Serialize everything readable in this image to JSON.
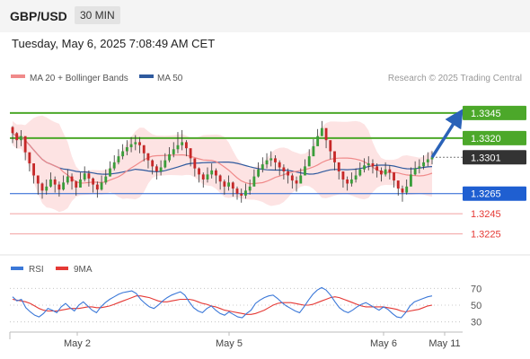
{
  "header": {
    "symbol": "GBP/USD",
    "interval": "30 MIN",
    "timestamp": "Tuesday, May 6, 2025 7:08:49 AM CET"
  },
  "legend": {
    "ma20_label": "MA 20 + Bollinger Bands",
    "ma50_label": "MA 50",
    "ma20_color": "#f08a8a",
    "ma50_color": "#2f5a9e"
  },
  "watermark": "Research © 2025 Trading Central",
  "chart_data": {
    "type": "candlestick",
    "price_panel": {
      "ylim": [
        1.3206,
        1.3368
      ],
      "levels": [
        {
          "label": "1.3345",
          "value": 1.3345,
          "kind": "resistance",
          "color": "#4ca82a"
        },
        {
          "label": "1.3320",
          "value": 1.332,
          "kind": "resistance",
          "color": "#4ca82a"
        },
        {
          "label": "1.3301",
          "value": 1.3301,
          "kind": "last",
          "color": "#333333"
        },
        {
          "label": "1.3265",
          "value": 1.3265,
          "kind": "pivot",
          "color": "#1f5fd1"
        },
        {
          "label": "1.3245",
          "value": 1.3245,
          "kind": "support",
          "color": "#e53935"
        },
        {
          "label": "1.3225",
          "value": 1.3225,
          "kind": "support",
          "color": "#e53935"
        }
      ],
      "target_arrow": {
        "from": 1.3301,
        "to": 1.3345
      },
      "closes": [
        1.3325,
        1.3318,
        1.3322,
        1.3306,
        1.3295,
        1.3283,
        1.3275,
        1.3268,
        1.3272,
        1.3279,
        1.3274,
        1.3269,
        1.3276,
        1.3282,
        1.3277,
        1.3271,
        1.3279,
        1.3285,
        1.328,
        1.3274,
        1.3269,
        1.3276,
        1.3282,
        1.329,
        1.3296,
        1.3302,
        1.3307,
        1.3311,
        1.3314,
        1.3316,
        1.3313,
        1.3305,
        1.3298,
        1.3292,
        1.3287,
        1.3291,
        1.3298,
        1.3304,
        1.3309,
        1.3313,
        1.3316,
        1.331,
        1.33,
        1.329,
        1.3284,
        1.3279,
        1.3284,
        1.3288,
        1.3283,
        1.3277,
        1.3272,
        1.3276,
        1.327,
        1.3265,
        1.3263,
        1.3268,
        1.3272,
        1.3282,
        1.3289,
        1.3294,
        1.3298,
        1.33,
        1.3296,
        1.3291,
        1.3287,
        1.3283,
        1.3278,
        1.3275,
        1.3283,
        1.3292,
        1.3302,
        1.3312,
        1.3322,
        1.333,
        1.3318,
        1.3307,
        1.3296,
        1.3287,
        1.3279,
        1.3275,
        1.3279,
        1.3283,
        1.3289,
        1.3293,
        1.3295,
        1.3292,
        1.3288,
        1.3284,
        1.3289,
        1.3286,
        1.3278,
        1.327,
        1.3266,
        1.3272,
        1.3284,
        1.329,
        1.3292,
        1.3296,
        1.3299,
        1.3301
      ],
      "highs": [
        1.3332,
        1.3326,
        1.3328,
        1.3316,
        1.3303,
        1.3292,
        1.3282,
        1.3276,
        1.3279,
        1.3286,
        1.3282,
        1.3277,
        1.3283,
        1.3289,
        1.3285,
        1.3278,
        1.3286,
        1.3292,
        1.3288,
        1.3281,
        1.3277,
        1.3283,
        1.3289,
        1.3297,
        1.3303,
        1.3309,
        1.3314,
        1.3318,
        1.3321,
        1.3323,
        1.3321,
        1.3313,
        1.3305,
        1.3299,
        1.3294,
        1.3298,
        1.3305,
        1.3311,
        1.3316,
        1.3326,
        1.3328,
        1.3318,
        1.3308,
        1.3298,
        1.3291,
        1.3286,
        1.3291,
        1.3295,
        1.329,
        1.3284,
        1.3279,
        1.3283,
        1.3277,
        1.3272,
        1.327,
        1.3275,
        1.3279,
        1.3289,
        1.3296,
        1.3301,
        1.3305,
        1.3307,
        1.3303,
        1.3298,
        1.3294,
        1.329,
        1.3285,
        1.3282,
        1.329,
        1.3299,
        1.3309,
        1.3319,
        1.3329,
        1.3337,
        1.3326,
        1.3315,
        1.3303,
        1.3294,
        1.3286,
        1.3282,
        1.3286,
        1.329,
        1.3296,
        1.33,
        1.3302,
        1.3299,
        1.3295,
        1.3291,
        1.3296,
        1.3293,
        1.3285,
        1.3277,
        1.3273,
        1.3279,
        1.3291,
        1.3297,
        1.3299,
        1.3303,
        1.3306,
        1.3307
      ],
      "lows": [
        1.3315,
        1.331,
        1.3312,
        1.3298,
        1.3287,
        1.3275,
        1.3264,
        1.326,
        1.3264,
        1.3271,
        1.3266,
        1.3262,
        1.3268,
        1.3274,
        1.3269,
        1.3263,
        1.3271,
        1.3277,
        1.3272,
        1.3266,
        1.3261,
        1.3268,
        1.3274,
        1.3282,
        1.3288,
        1.3294,
        1.3299,
        1.3303,
        1.3306,
        1.3308,
        1.3305,
        1.3297,
        1.329,
        1.3284,
        1.3279,
        1.3283,
        1.329,
        1.3296,
        1.3301,
        1.3305,
        1.3308,
        1.3302,
        1.3292,
        1.3282,
        1.3276,
        1.3271,
        1.3276,
        1.328,
        1.3275,
        1.3269,
        1.3264,
        1.3268,
        1.3262,
        1.3259,
        1.3256,
        1.326,
        1.3264,
        1.3274,
        1.3281,
        1.3286,
        1.329,
        1.3292,
        1.3288,
        1.3283,
        1.3279,
        1.3275,
        1.327,
        1.3267,
        1.3275,
        1.3284,
        1.3294,
        1.3304,
        1.3314,
        1.3322,
        1.331,
        1.3299,
        1.3288,
        1.3279,
        1.3271,
        1.3268,
        1.3272,
        1.3276,
        1.3282,
        1.3286,
        1.3288,
        1.3285,
        1.3281,
        1.3277,
        1.3282,
        1.3279,
        1.3271,
        1.3263,
        1.3257,
        1.3264,
        1.3276,
        1.3283,
        1.3285,
        1.3289,
        1.3292,
        1.3294
      ]
    },
    "rsi_panel": {
      "legend": [
        {
          "name": "RSI",
          "color": "#3b78d8"
        },
        {
          "name": "9MA",
          "color": "#e53935"
        }
      ],
      "ylim": [
        20,
        80
      ],
      "ticks": [
        "70",
        "50",
        "30"
      ],
      "guide_levels": [
        70,
        50,
        30
      ],
      "rsi": [
        60,
        55,
        57,
        47,
        42,
        38,
        36,
        40,
        46,
        44,
        41,
        48,
        52,
        47,
        43,
        50,
        54,
        49,
        44,
        41,
        48,
        53,
        57,
        60,
        63,
        65,
        66,
        67,
        64,
        57,
        52,
        48,
        46,
        50,
        55,
        59,
        62,
        64,
        66,
        62,
        54,
        47,
        43,
        41,
        46,
        49,
        44,
        40,
        38,
        42,
        39,
        36,
        35,
        40,
        44,
        52,
        56,
        59,
        61,
        62,
        58,
        53,
        49,
        46,
        43,
        41,
        48,
        56,
        63,
        68,
        71,
        68,
        62,
        54,
        47,
        43,
        41,
        44,
        48,
        51,
        53,
        50,
        47,
        44,
        48,
        45,
        40,
        36,
        35,
        41,
        49,
        54,
        56,
        58,
        60,
        61
      ],
      "rsi_ma": [
        57,
        56,
        55,
        54,
        52,
        49,
        46,
        44,
        43,
        43,
        43,
        44,
        45,
        46,
        46,
        46,
        47,
        48,
        48,
        47,
        47,
        48,
        49,
        51,
        53,
        55,
        57,
        59,
        61,
        61,
        60,
        59,
        57,
        55,
        54,
        54,
        55,
        56,
        57,
        57,
        57,
        56,
        54,
        52,
        51,
        49,
        48,
        46,
        44,
        43,
        42,
        41,
        40,
        39,
        39,
        40,
        42,
        44,
        47,
        50,
        52,
        53,
        53,
        53,
        52,
        51,
        50,
        50,
        51,
        53,
        55,
        57,
        59,
        60,
        59,
        57,
        55,
        53,
        51,
        49,
        48,
        48,
        48,
        48,
        48,
        47,
        46,
        45,
        43,
        42,
        43,
        44,
        45,
        47,
        49,
        50
      ]
    },
    "x_ticks": [
      "May 2",
      "May 5",
      "May 6",
      "May 11"
    ]
  }
}
